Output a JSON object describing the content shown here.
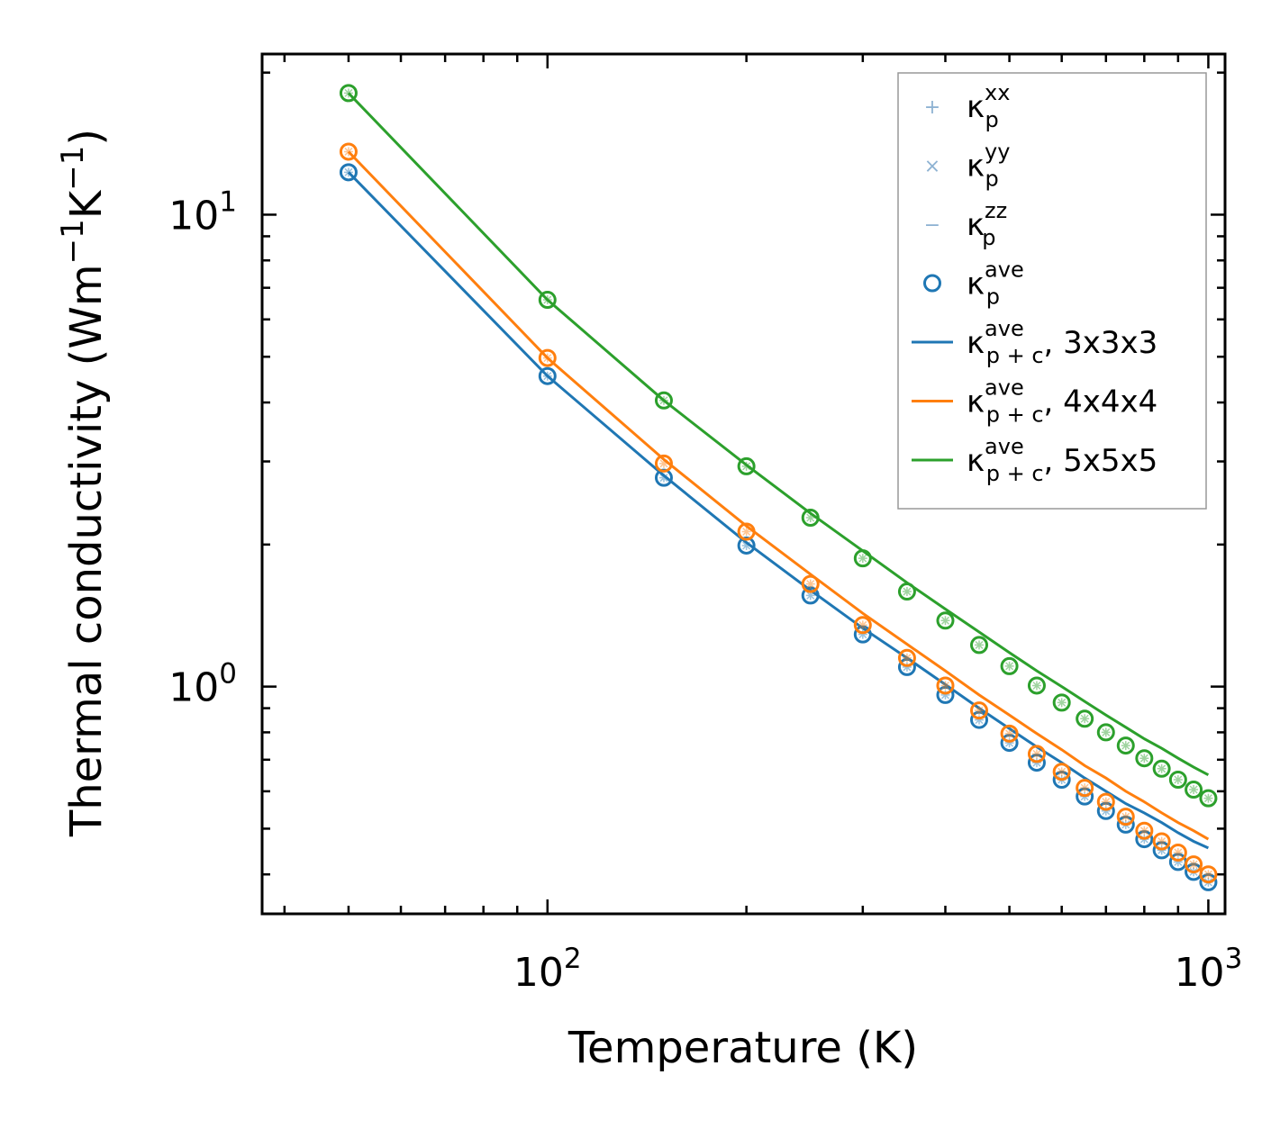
{
  "chart_data": {
    "type": "scatter",
    "xscale": "log",
    "yscale": "log",
    "xlabel": "Temperature (K)",
    "ylabel_parts": {
      "base": "Thermal conductivity (Wm",
      "exp1": "−1",
      "mid": "K",
      "exp2": "−1",
      "close": ")"
    },
    "xlim": [
      37,
      1060
    ],
    "ylim": [
      0.33,
      21.9
    ],
    "xticks": [
      {
        "value": 100,
        "base": "10",
        "exp": "2"
      },
      {
        "value": 1000,
        "base": "10",
        "exp": "3"
      }
    ],
    "yticks": [
      {
        "value": 1,
        "base": "10",
        "exp": "0"
      },
      {
        "value": 10,
        "base": "10",
        "exp": "1"
      }
    ],
    "x": [
      50,
      100,
      150,
      200,
      250,
      300,
      350,
      400,
      450,
      500,
      550,
      600,
      650,
      700,
      750,
      800,
      850,
      900,
      950,
      1000
    ],
    "scatter_series": [
      {
        "name": "3x3x3",
        "color": "#1f77b4",
        "values": [
          12.3,
          4.55,
          2.77,
          1.99,
          1.56,
          1.29,
          1.1,
          0.96,
          0.85,
          0.76,
          0.69,
          0.635,
          0.585,
          0.545,
          0.51,
          0.475,
          0.45,
          0.425,
          0.405,
          0.385
        ]
      },
      {
        "name": "4x4x4",
        "color": "#ff7f0e",
        "values": [
          13.6,
          4.97,
          2.97,
          2.13,
          1.65,
          1.35,
          1.15,
          1.005,
          0.89,
          0.795,
          0.72,
          0.66,
          0.61,
          0.57,
          0.53,
          0.495,
          0.47,
          0.445,
          0.42,
          0.4
        ]
      },
      {
        "name": "5x5x5",
        "color": "#2ca02c",
        "values": [
          18.1,
          6.6,
          4.04,
          2.93,
          2.28,
          1.87,
          1.59,
          1.38,
          1.225,
          1.105,
          1.005,
          0.925,
          0.855,
          0.8,
          0.75,
          0.705,
          0.67,
          0.635,
          0.605,
          0.58
        ]
      }
    ],
    "line_series": [
      {
        "name": "3x3x3",
        "color": "#1f77b4",
        "values": [
          12.3,
          4.55,
          2.8,
          2.02,
          1.6,
          1.33,
          1.15,
          1.01,
          0.9,
          0.815,
          0.745,
          0.69,
          0.64,
          0.6,
          0.565,
          0.54,
          0.515,
          0.49,
          0.47,
          0.455
        ]
      },
      {
        "name": "4x4x4",
        "color": "#ff7f0e",
        "values": [
          13.6,
          4.97,
          3.03,
          2.19,
          1.73,
          1.43,
          1.23,
          1.08,
          0.96,
          0.87,
          0.795,
          0.735,
          0.68,
          0.64,
          0.6,
          0.57,
          0.54,
          0.515,
          0.495,
          0.475
        ]
      },
      {
        "name": "5x5x5",
        "color": "#2ca02c",
        "values": [
          18.1,
          6.6,
          4.04,
          2.95,
          2.33,
          1.94,
          1.66,
          1.46,
          1.305,
          1.18,
          1.08,
          1.0,
          0.93,
          0.87,
          0.82,
          0.775,
          0.74,
          0.705,
          0.675,
          0.65
        ]
      }
    ],
    "legend": {
      "position": "top-right",
      "entries": [
        {
          "symbol": "+",
          "base": "κ",
          "sub": "p",
          "sup": "xx",
          "suffix": "",
          "color": "#8fb3d3"
        },
        {
          "symbol": "×",
          "base": "κ",
          "sub": "p",
          "sup": "yy",
          "suffix": "",
          "color": "#8fb3d3"
        },
        {
          "symbol": "−",
          "base": "κ",
          "sub": "p",
          "sup": "zz",
          "suffix": "",
          "color": "#8fb3d3"
        },
        {
          "symbol": "circle",
          "base": "κ",
          "sub": "p",
          "sup": "ave",
          "suffix": "",
          "color": "#1f77b4"
        },
        {
          "symbol": "line",
          "base": "κ",
          "sub": "p + c",
          "sup": "ave",
          "suffix": ", 3x3x3",
          "color": "#1f77b4"
        },
        {
          "symbol": "line",
          "base": "κ",
          "sub": "p + c",
          "sup": "ave",
          "suffix": ", 4x4x4",
          "color": "#ff7f0e"
        },
        {
          "symbol": "line",
          "base": "κ",
          "sub": "p + c",
          "sup": "ave",
          "suffix": ", 5x5x5",
          "color": "#2ca02c"
        }
      ]
    }
  }
}
